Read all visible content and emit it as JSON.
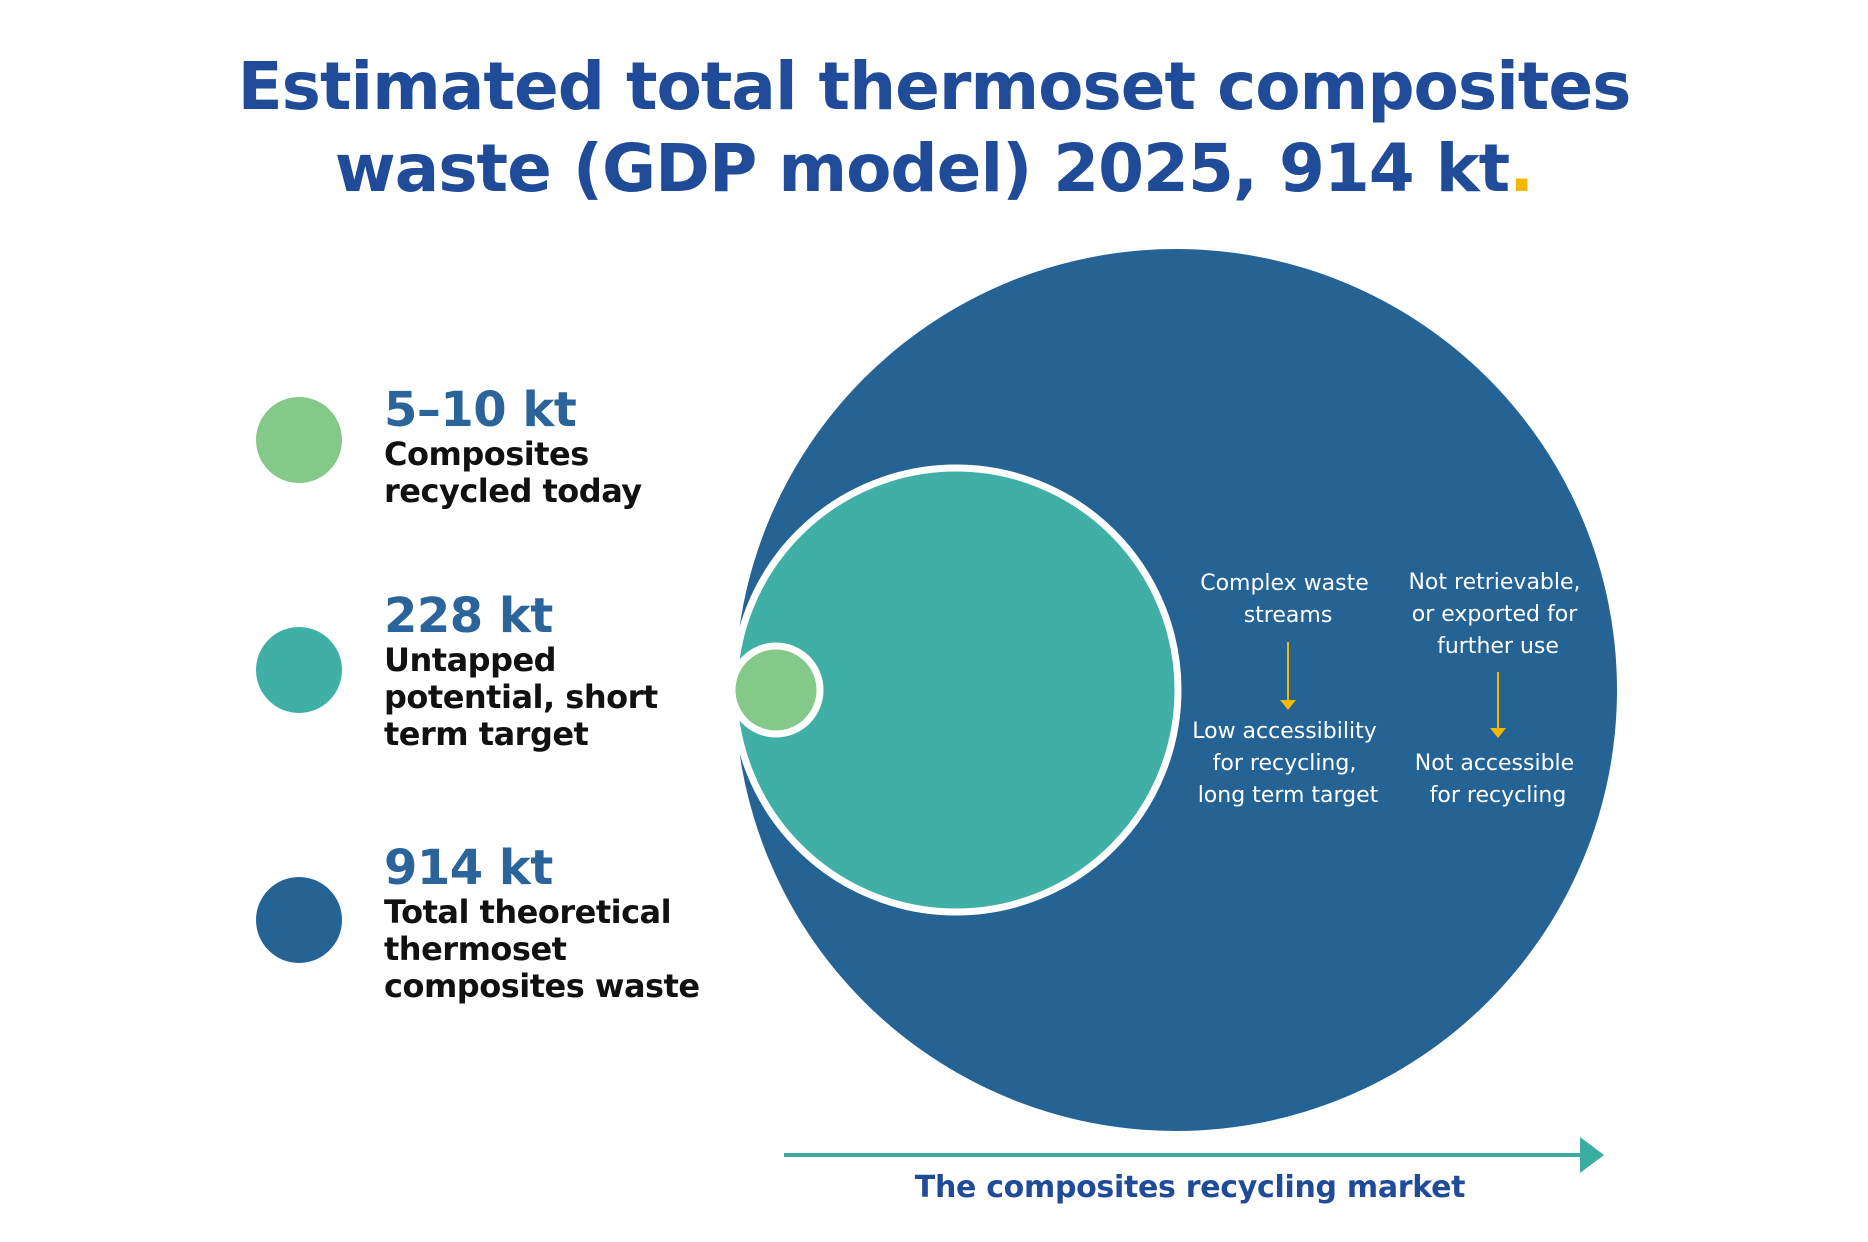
{
  "title": {
    "text": "Estimated total thermoset composites waste (GDP model) 2025, 914 kt",
    "end_dot": "."
  },
  "colors": {
    "title": "#1f4b99",
    "accent_dot": "#f5b800",
    "recycled_today": "#84c98a",
    "untapped": "#40b0a6",
    "total": "#256395",
    "value_text": "#2a649a",
    "arrow_teal": "#3aaca0",
    "small_arrow": "#f5b800"
  },
  "legend": [
    {
      "value": "5–10 kt",
      "desc": "Composites\nrecycled today",
      "color": "#84c98a"
    },
    {
      "value": "228 kt",
      "desc": "Untapped\npotential, short\nterm target",
      "color": "#40b0a6"
    },
    {
      "value": "914 kt",
      "desc": "Total theoretical\nthermoset\ncomposites waste",
      "color": "#256395"
    }
  ],
  "inner_labels": {
    "col1_top": [
      "Complex waste",
      "streams"
    ],
    "col1_bottom": [
      "Low accessibility",
      "for recycling,",
      "long term target"
    ],
    "col2_top": [
      "Not retrievable,",
      "or exported for",
      "further use"
    ],
    "col2_bottom": [
      "Not accessible",
      "for recycling"
    ]
  },
  "axis_label": "The composites recycling market"
}
